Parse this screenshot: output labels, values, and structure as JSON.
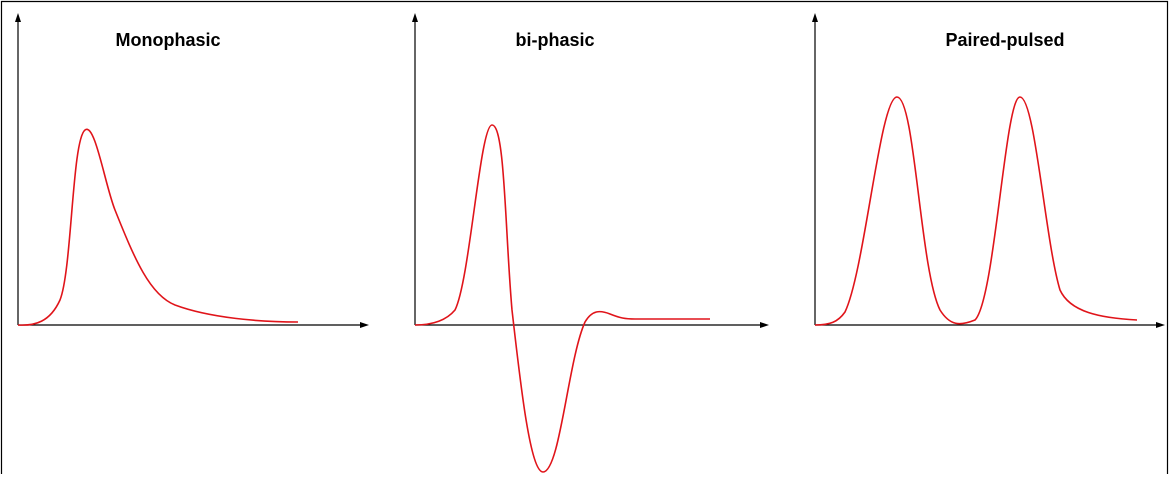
{
  "panels": [
    {
      "title": "Monophasic"
    },
    {
      "title": "bi-phasic"
    },
    {
      "title": "Paired-pulsed"
    }
  ]
}
